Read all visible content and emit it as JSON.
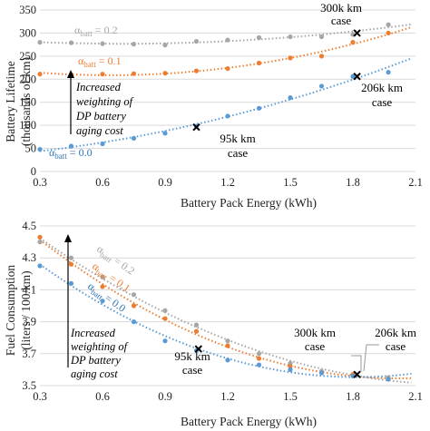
{
  "chart_data": [
    {
      "type": "scatter",
      "xlabel": "Battery Pack Energy (kWh)",
      "ylabel_lines": [
        "Battery Lifetime",
        "(thousands of km)"
      ],
      "xticks": [
        "0.3",
        "0.6",
        "0.9",
        "1.2",
        "1.5",
        "1.8",
        "2.1"
      ],
      "yticks": [
        "0",
        "50",
        "100",
        "150",
        "200",
        "250",
        "300",
        "350"
      ],
      "xlim": [
        0.3,
        2.1
      ],
      "ylim": [
        0,
        350
      ],
      "grid": "horizontal",
      "series": [
        {
          "alpha_sub": "batt",
          "alpha_val": " = 0.2",
          "color": "#a6a6a6",
          "x": [
            0.3,
            0.45,
            0.6,
            0.75,
            0.9,
            1.05,
            1.2,
            1.35,
            1.5,
            1.65,
            1.8,
            1.97
          ],
          "y": [
            280,
            279,
            277,
            276,
            274,
            282,
            285,
            290,
            292,
            292,
            297,
            318
          ]
        },
        {
          "alpha_sub": "batt",
          "alpha_val": " = 0.1",
          "color": "#ed7d31",
          "x": [
            0.3,
            0.45,
            0.6,
            0.75,
            0.9,
            1.05,
            1.2,
            1.35,
            1.5,
            1.65,
            1.8,
            1.97
          ],
          "y": [
            211,
            210,
            211,
            212,
            213,
            218,
            223,
            235,
            246,
            250,
            280,
            300
          ]
        },
        {
          "alpha_sub": "batt",
          "alpha_val": " = 0.0",
          "color": "#5b9bd5",
          "x": [
            0.3,
            0.45,
            0.6,
            0.75,
            0.9,
            1.05,
            1.2,
            1.35,
            1.5,
            1.65,
            1.8,
            1.97
          ],
          "y": [
            48,
            55,
            60,
            72,
            83,
            98,
            120,
            137,
            160,
            185,
            206,
            215
          ]
        }
      ],
      "cases": [
        {
          "label_lines": [
            "300k km",
            "case"
          ],
          "x": 1.82,
          "y": 300
        },
        {
          "label_lines": [
            "206k km",
            "case"
          ],
          "x": 1.82,
          "y": 206
        },
        {
          "label_lines": [
            "95k km",
            "case"
          ],
          "x": 1.05,
          "y": 96
        }
      ],
      "arrow_text": [
        "Increased",
        "weighting of",
        "DP battery",
        "aging cost"
      ]
    },
    {
      "type": "scatter",
      "xlabel": "Battery Pack Energy (kWh)",
      "ylabel_lines": [
        "Fuel Consumption",
        "(liters / 100 km)"
      ],
      "xticks": [
        "0.3",
        "0.6",
        "0.9",
        "1.2",
        "1.5",
        "1.8",
        "2.1"
      ],
      "yticks": [
        "3.5",
        "3.7",
        "3.9",
        "4.1",
        "4.3",
        "4.5"
      ],
      "xlim": [
        0.3,
        2.1
      ],
      "ylim": [
        3.5,
        4.5
      ],
      "grid": "horizontal",
      "series": [
        {
          "alpha_sub": "batt",
          "alpha_val": " = 0.2",
          "color": "#a6a6a6",
          "x": [
            0.3,
            0.45,
            0.6,
            0.75,
            0.9,
            1.05,
            1.2,
            1.35,
            1.5,
            1.65,
            1.8,
            1.97
          ],
          "y": [
            4.4,
            4.3,
            4.18,
            4.07,
            3.97,
            3.88,
            3.78,
            3.7,
            3.64,
            3.59,
            3.57,
            3.55
          ]
        },
        {
          "alpha_sub": "batt",
          "alpha_val": " = 0.1",
          "color": "#ed7d31",
          "x": [
            0.3,
            0.45,
            0.6,
            0.75,
            0.9,
            1.05,
            1.2,
            1.35,
            1.5,
            1.65,
            1.8,
            1.97
          ],
          "y": [
            4.43,
            4.26,
            4.12,
            4.0,
            3.92,
            3.84,
            3.75,
            3.67,
            3.62,
            3.58,
            3.57,
            3.54
          ]
        },
        {
          "alpha_sub": "batt",
          "alpha_val": " = 0.0",
          "color": "#5b9bd5",
          "x": [
            0.3,
            0.45,
            0.6,
            0.75,
            0.9,
            1.05,
            1.2,
            1.35,
            1.5,
            1.65,
            1.8,
            1.97
          ],
          "y": [
            4.25,
            4.14,
            4.03,
            3.9,
            3.78,
            3.72,
            3.66,
            3.63,
            3.6,
            3.58,
            3.56,
            3.54
          ]
        }
      ],
      "cases": [
        {
          "label_lines": [
            "95k km",
            "case"
          ],
          "x": 1.06,
          "y": 3.73
        },
        {
          "label_lines": [
            "300k km",
            "case"
          ],
          "x": 1.82,
          "y": 3.57
        },
        {
          "label_lines": [
            "206k km",
            "case"
          ],
          "x": 1.82,
          "y": 3.57
        }
      ],
      "arrow_text": [
        "Increased",
        "weighting of",
        "DP battery",
        "aging cost"
      ]
    }
  ]
}
